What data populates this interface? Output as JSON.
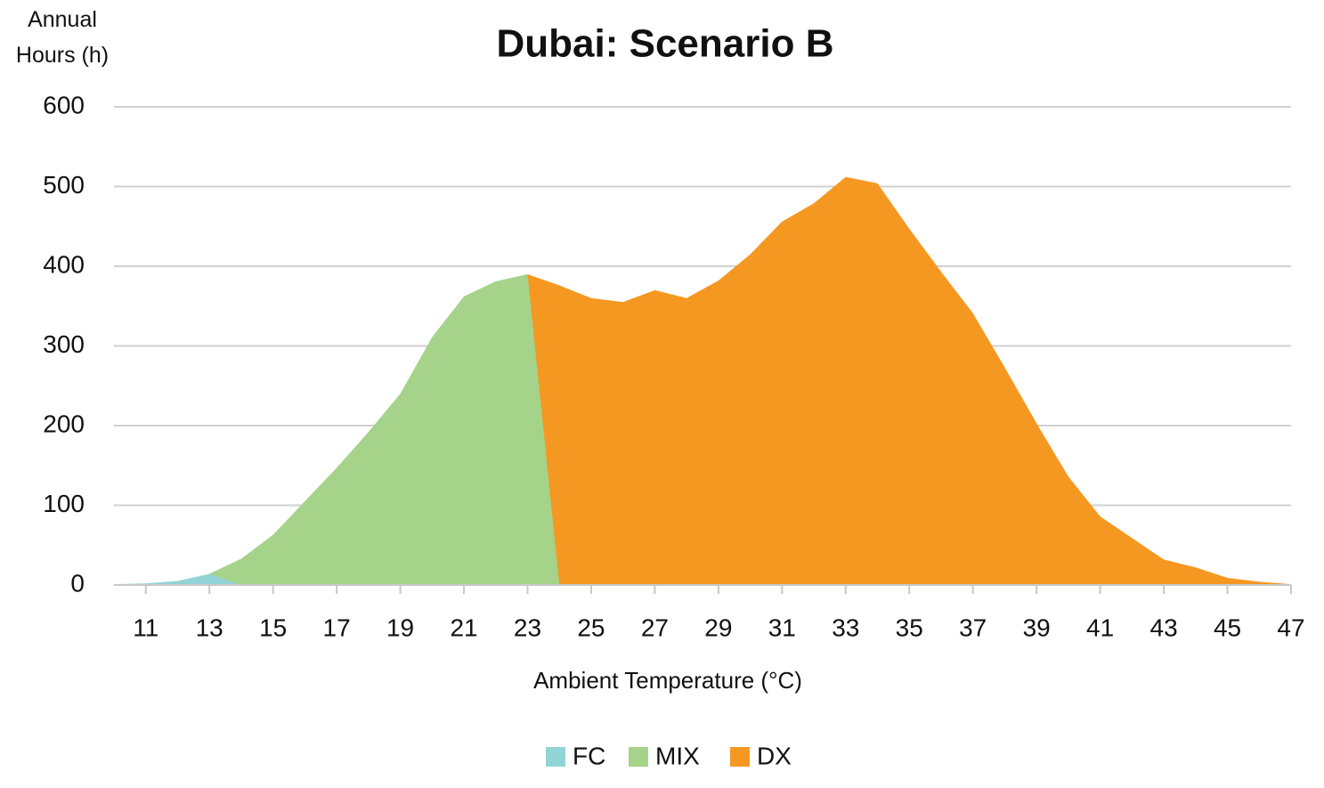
{
  "chart_data": {
    "type": "area",
    "title": "Dubai: Scenario B",
    "x_label": "Ambient Temperature (°C)",
    "y_label": "Annual Hours (h)",
    "x": [
      10,
      11,
      12,
      13,
      14,
      15,
      16,
      17,
      18,
      19,
      20,
      21,
      22,
      23,
      24,
      25,
      26,
      27,
      28,
      29,
      30,
      31,
      32,
      33,
      34,
      35,
      36,
      37,
      38,
      39,
      40,
      41,
      42,
      43,
      44,
      45,
      46,
      47
    ],
    "series": [
      {
        "name": "FC",
        "color": "#92d3d5",
        "values": [
          1,
          2,
          5,
          14,
          0,
          0,
          0,
          0,
          0,
          0,
          0,
          0,
          0,
          0,
          0,
          0,
          0,
          0,
          0,
          0,
          0,
          0,
          0,
          0,
          0,
          0,
          0,
          0,
          0,
          0,
          0,
          0,
          0,
          0,
          0,
          0,
          0,
          0
        ]
      },
      {
        "name": "MIX",
        "color": "#a5d389",
        "values": [
          0,
          0,
          0,
          14,
          33,
          63,
          105,
          147,
          192,
          240,
          311,
          362,
          381,
          390,
          0,
          0,
          0,
          0,
          0,
          0,
          0,
          0,
          0,
          0,
          0,
          0,
          0,
          0,
          0,
          0,
          0,
          0,
          0,
          0,
          0,
          0,
          0,
          0
        ]
      },
      {
        "name": "DX",
        "color": "#f59822",
        "values": [
          0,
          0,
          0,
          0,
          0,
          0,
          0,
          0,
          0,
          0,
          0,
          0,
          0,
          390,
          376,
          360,
          355,
          370,
          360,
          382,
          415,
          456,
          479,
          512,
          504,
          447,
          393,
          341,
          273,
          203,
          136,
          86,
          59,
          32,
          22,
          9,
          4,
          1
        ]
      }
    ],
    "xlim": [
      10,
      47
    ],
    "xticks": [
      11,
      13,
      15,
      17,
      19,
      21,
      23,
      25,
      27,
      29,
      31,
      33,
      35,
      37,
      39,
      41,
      43,
      45,
      47
    ],
    "ylim": [
      0,
      600
    ],
    "yticks": [
      0,
      100,
      200,
      300,
      400,
      500,
      600
    ],
    "grid": true,
    "legend": "bottom"
  }
}
